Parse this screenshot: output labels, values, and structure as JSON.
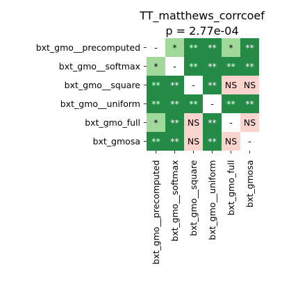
{
  "chart_data": {
    "type": "heatmap",
    "title": "TT_matthews_corrcoef",
    "subtitle": "p = 2.77e-04",
    "row_labels": [
      "bxt_gmo__precomputed",
      "bxt_gmo__softmax",
      "bxt_gmo__square",
      "bxt_gmo__uniform",
      "bxt_gmo_full",
      "bxt_gmosa"
    ],
    "col_labels": [
      "bxt_gmo__precomputed",
      "bxt_gmo__softmax",
      "bxt_gmo__square",
      "bxt_gmo__uniform",
      "bxt_gmo_full",
      "bxt_gmosa"
    ],
    "cells": [
      [
        "-",
        "*",
        "**",
        "**",
        "*",
        "**"
      ],
      [
        "*",
        "-",
        "**",
        "**",
        "**",
        "**"
      ],
      [
        "**",
        "**",
        "-",
        "**",
        "NS",
        "NS"
      ],
      [
        "**",
        "**",
        "**",
        "-",
        "**",
        "**"
      ],
      [
        "*",
        "**",
        "NS",
        "**",
        "-",
        "NS"
      ],
      [
        "**",
        "**",
        "NS",
        "**",
        "NS",
        "-"
      ]
    ],
    "colors": {
      "**": "#238b45",
      "*": "#a1d99b",
      "NS": "#fbd3cf",
      "-": "#ffffff"
    },
    "text_colors": {
      "**": "#ffffff",
      "*": "#000000",
      "NS": "#000000",
      "-": "#000000"
    }
  }
}
